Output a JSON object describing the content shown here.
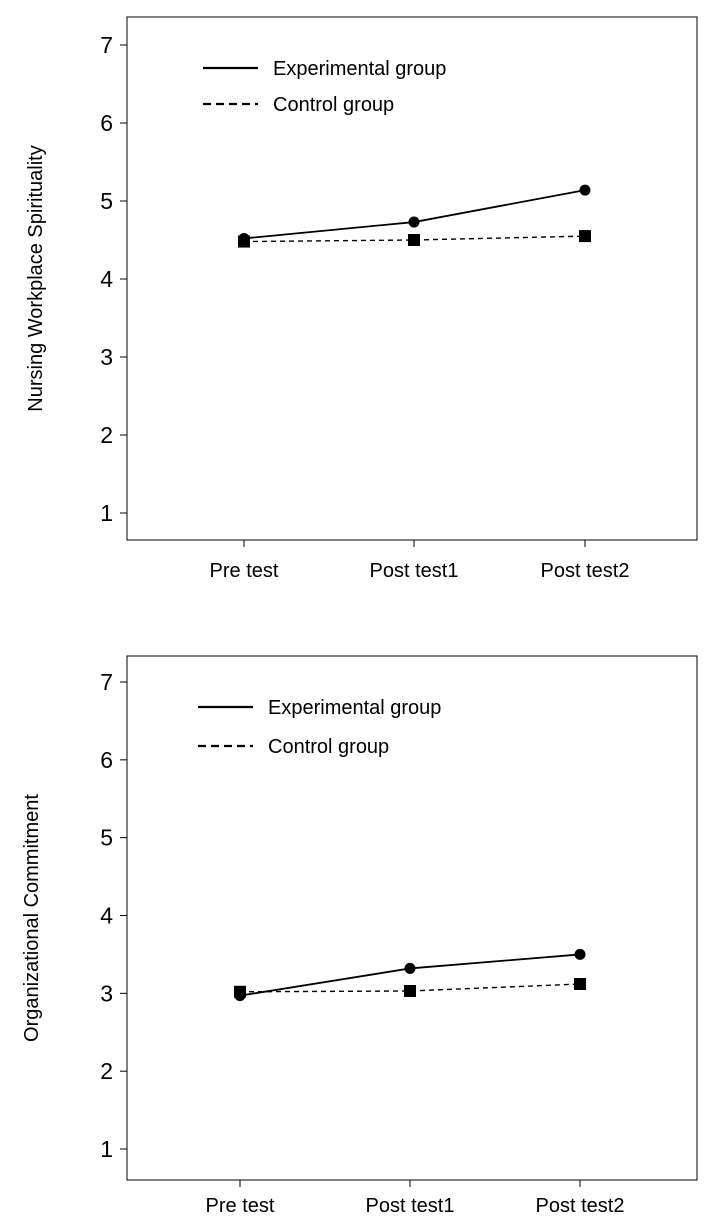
{
  "chart_data": [
    {
      "type": "line",
      "title": "",
      "xlabel": "",
      "ylabel": "Nursing Workplace Spirituality",
      "categories": [
        "Pre test",
        "Post test1",
        "Post test2"
      ],
      "ylim": [
        1,
        7
      ],
      "yticks": [
        "1",
        "2",
        "3",
        "4",
        "5",
        "6",
        "7"
      ],
      "grid": false,
      "legend_position": "top-left",
      "series": [
        {
          "name": "Experimental group",
          "values": [
            4.52,
            4.73,
            5.14
          ],
          "line_style": "solid",
          "marker": "circle",
          "color": "#000000"
        },
        {
          "name": "Control group",
          "values": [
            4.48,
            4.5,
            4.55
          ],
          "line_style": "dashed",
          "marker": "square",
          "color": "#000000"
        }
      ]
    },
    {
      "type": "line",
      "title": "",
      "xlabel": "",
      "ylabel": "Organizational Commitment",
      "categories": [
        "Pre test",
        "Post test1",
        "Post test2"
      ],
      "ylim": [
        1,
        7
      ],
      "yticks": [
        "1",
        "2",
        "3",
        "4",
        "5",
        "6",
        "7"
      ],
      "grid": false,
      "legend_position": "top-left",
      "series": [
        {
          "name": "Experimental group",
          "values": [
            2.97,
            3.32,
            3.5
          ],
          "line_style": "solid",
          "marker": "circle",
          "color": "#000000"
        },
        {
          "name": "Control group",
          "values": [
            3.02,
            3.03,
            3.12
          ],
          "line_style": "dashed",
          "marker": "square",
          "color": "#000000"
        }
      ]
    }
  ]
}
